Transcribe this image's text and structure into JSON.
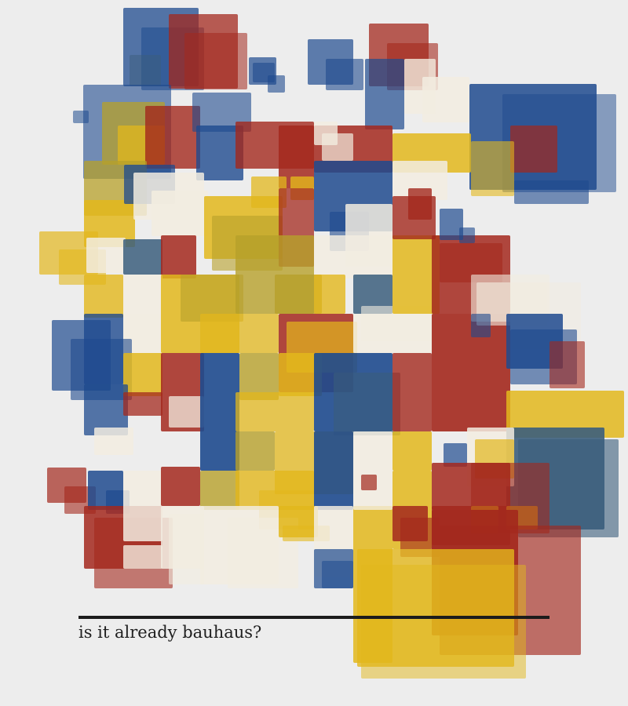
{
  "artwork": {
    "palette": {
      "background": "#ededed",
      "red": "#a3281d",
      "blue": "#1e4a8e",
      "yellow": "#e2b71c",
      "cream": "#f2ece0",
      "olive": "#b7a02a",
      "slate": "#3b5e7c",
      "rule": "#1c1c1c",
      "text": "#1f1f1f"
    }
  },
  "caption": {
    "text": "is it already bauhaus?"
  }
}
